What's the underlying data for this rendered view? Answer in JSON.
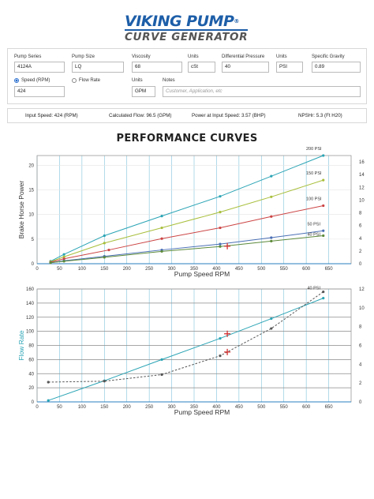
{
  "logo": {
    "line1": "VIKING PUMP",
    "reg": "®",
    "line2": "CURVE GENERATOR"
  },
  "form": {
    "pump_series": {
      "label": "Pump Series",
      "value": "4124A"
    },
    "pump_size": {
      "label": "Pump Size",
      "value": "LQ"
    },
    "viscosity": {
      "label": "Viscosity",
      "value": "68"
    },
    "viscosity_units": {
      "label": "Units",
      "value": "cSt"
    },
    "diff_pressure": {
      "label": "Differential Pressure",
      "value": "40"
    },
    "pressure_units": {
      "label": "Units",
      "value": "PSI"
    },
    "specific_gravity": {
      "label": "Specific Gravity",
      "value": "0.89"
    },
    "speed": {
      "label": "Speed (RPM)",
      "value": "424",
      "selected": true
    },
    "flow_rate": {
      "label": "Flow Rate",
      "selected": false
    },
    "flow_units": {
      "label": "Units",
      "value": "GPM"
    },
    "notes": {
      "label": "Notes",
      "placeholder": "Customer, Application, etc"
    }
  },
  "info": {
    "input_speed": "Input Speed: 424 (RPM)",
    "calculated_flow": "Calculated Flow: 96.5 (GPM)",
    "power": "Power at Input Speed: 3.57 (BHP)",
    "npshr": "NPSHr: 5.3 (Ft H20)"
  },
  "title": "PERFORMANCE CURVES",
  "colors": {
    "brand_blue": "#1d5ea8",
    "teal": "#2aa4b5",
    "olive": "#a8bf3c",
    "red": "#cc4444",
    "blue": "#4a6fb5",
    "green": "#5c8a3a",
    "marker": "#d32f2f"
  },
  "chart_data": [
    {
      "type": "line",
      "title": "",
      "xlabel": "Pump Speed RPM",
      "ylabel": "Brake Horse Power",
      "xlim": [
        0,
        700
      ],
      "ylim": [
        0,
        22
      ],
      "y2lim": [
        0,
        17
      ],
      "xticks": [
        0,
        50,
        100,
        150,
        200,
        250,
        300,
        350,
        400,
        450,
        500,
        550,
        600,
        650
      ],
      "yticks": [
        0,
        5,
        10,
        15,
        20
      ],
      "y2ticks": [
        0,
        2,
        4,
        6,
        8,
        10,
        12,
        14,
        16
      ],
      "grid": true,
      "series": [
        {
          "name": "200 PSI",
          "color": "#2aa4b5",
          "x": [
            30,
            60,
            150,
            278,
            408,
            522,
            638
          ],
          "y": [
            0.5,
            1.9,
            5.7,
            9.7,
            13.7,
            17.8,
            22.0
          ]
        },
        {
          "name": "150 PSI",
          "color": "#a8bf3c",
          "x": [
            30,
            60,
            150,
            278,
            408,
            522,
            638
          ],
          "y": [
            0.4,
            1.4,
            4.2,
            7.3,
            10.5,
            13.6,
            17.0
          ]
        },
        {
          "name": "100 PSI",
          "color": "#cc4444",
          "x": [
            30,
            60,
            160,
            278,
            408,
            522,
            638
          ],
          "y": [
            0.3,
            1.0,
            2.8,
            5.1,
            7.3,
            9.6,
            11.8
          ]
        },
        {
          "name": "50 PSI",
          "color": "#4a6fb5",
          "x": [
            30,
            60,
            150,
            278,
            408,
            522,
            638
          ],
          "y": [
            0.2,
            0.6,
            1.5,
            2.8,
            4.0,
            5.3,
            6.7
          ]
        },
        {
          "name": "40 PSI",
          "color": "#5c8a3a",
          "x": [
            30,
            60,
            150,
            278,
            408,
            522,
            638
          ],
          "y": [
            0.2,
            0.5,
            1.3,
            2.5,
            3.5,
            4.6,
            5.7
          ]
        }
      ],
      "operating_point": {
        "x": 424,
        "y": 3.57
      }
    },
    {
      "type": "line",
      "title": "",
      "xlabel": "Pump Speed RPM",
      "ylabel": "Flow Rate",
      "xlim": [
        0,
        700
      ],
      "ylim": [
        0,
        160
      ],
      "y2lim": [
        0,
        12
      ],
      "xticks": [
        0,
        50,
        100,
        150,
        200,
        250,
        300,
        350,
        400,
        450,
        500,
        550,
        600,
        650
      ],
      "yticks": [
        0,
        20,
        40,
        60,
        80,
        100,
        120,
        140,
        160
      ],
      "y2ticks": [
        0,
        2,
        4,
        6,
        8,
        10,
        12
      ],
      "grid": true,
      "series": [
        {
          "name": "",
          "color": "#2aa4b5",
          "x": [
            25,
            150,
            278,
            408,
            522,
            638
          ],
          "y": [
            2,
            30,
            60,
            90,
            118,
            147
          ]
        },
        {
          "name": "40 PSI",
          "color": "#555555",
          "dashed": true,
          "x": [
            25,
            150,
            278,
            408,
            522,
            638
          ],
          "y2": [
            2.1,
            2.2,
            2.9,
            4.9,
            7.8,
            11.7
          ]
        }
      ],
      "operating_points": [
        {
          "x": 424,
          "y": 96.5
        },
        {
          "x": 424,
          "y2": 5.3
        }
      ]
    }
  ]
}
